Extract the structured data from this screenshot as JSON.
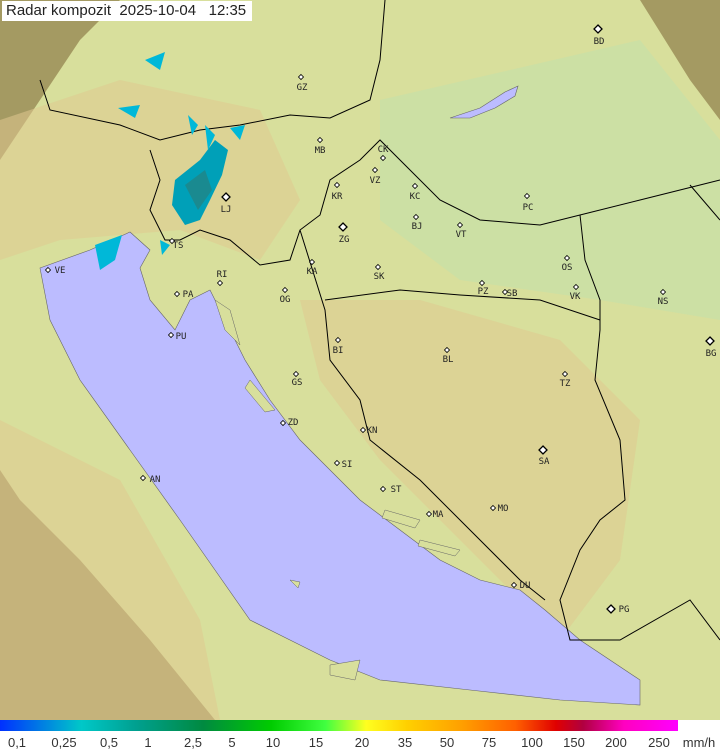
{
  "title": "Radar kompozit  2025-10-04   12:35",
  "legend": {
    "unit": "mm/h",
    "ticks": [
      "0,1",
      "0,25",
      "0,5",
      "1",
      "2,5",
      "5",
      "10",
      "15",
      "20",
      "35",
      "50",
      "75",
      "100",
      "150",
      "200",
      "250"
    ]
  },
  "colors": {
    "sea": "#bcbcff",
    "land": "#d8df9c",
    "outside": "#a49a62",
    "border": "#000000"
  },
  "cities": [
    "GZ",
    "BD",
    "MB",
    "CK",
    "VZ",
    "KR",
    "KC",
    "PC",
    "LJ",
    "TS",
    "ZG",
    "BJ",
    "VT",
    "VE",
    "RI",
    "KA",
    "SK",
    "OS",
    "PA",
    "OG",
    "PZ",
    "SB",
    "VK",
    "NS",
    "PU",
    "BG",
    "BI",
    "BL",
    "GS",
    "TZ",
    "ZD",
    "KN",
    "SA",
    "SI",
    "ST",
    "AN",
    "MA",
    "MO",
    "DU",
    "PG"
  ]
}
